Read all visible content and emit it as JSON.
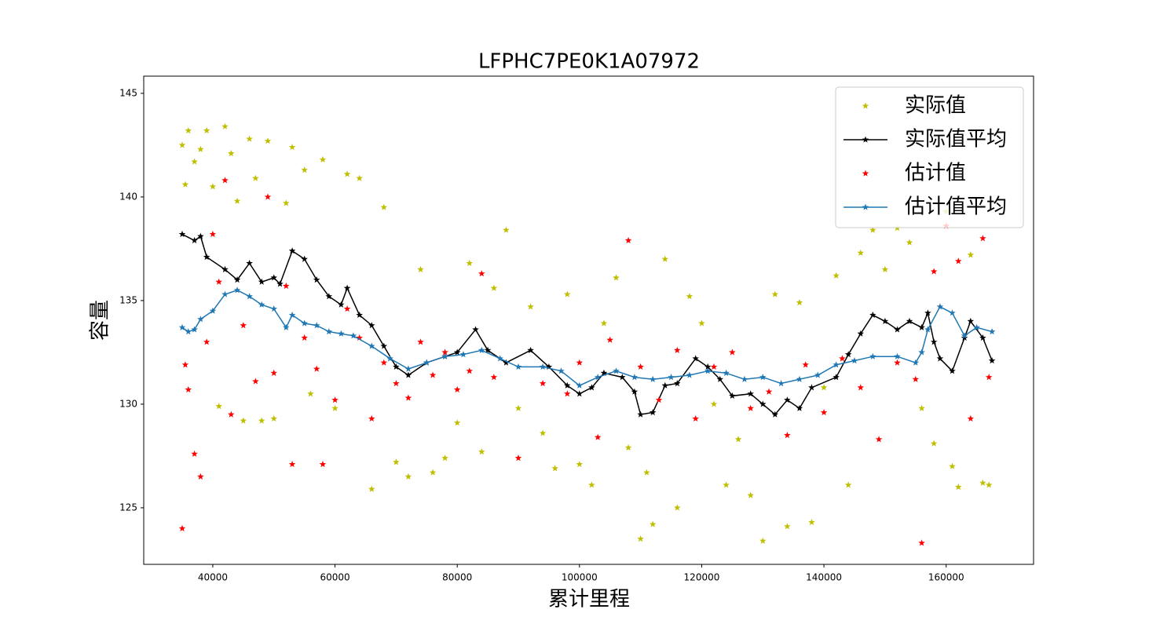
{
  "chart_data": {
    "type": "scatter",
    "title": "LFPHC7PE0K1A07972",
    "x_label": "累计里程",
    "y_label": "容量",
    "xlim": [
      28700,
      174300
    ],
    "ylim": [
      122.27,
      145.83
    ],
    "xticks": [
      40000,
      60000,
      80000,
      100000,
      120000,
      140000,
      160000
    ],
    "yticks": [
      125,
      130,
      135,
      140,
      145
    ],
    "legend": "upper right",
    "series": [
      {
        "name": "实际值",
        "color": "#bfbf00",
        "mode": "markers",
        "x": [
          35000,
          35500,
          36000,
          37000,
          38000,
          39000,
          40000,
          41000,
          42000,
          43000,
          44000,
          45000,
          46000,
          47000,
          48000,
          49000,
          50000,
          52000,
          53000,
          55000,
          56000,
          58000,
          60000,
          62000,
          64000,
          66000,
          68000,
          70000,
          72000,
          74000,
          76000,
          78000,
          80000,
          82000,
          84000,
          86000,
          88000,
          90000,
          92000,
          94000,
          96000,
          98000,
          100000,
          102000,
          104000,
          106000,
          108000,
          110000,
          111000,
          112000,
          114000,
          116000,
          118000,
          120000,
          122000,
          124000,
          126000,
          128000,
          130000,
          132000,
          134000,
          136000,
          138000,
          140000,
          142000,
          144000,
          146000,
          148000,
          150000,
          152000,
          154000,
          156000,
          158000,
          160000,
          161000,
          162000,
          164000,
          166000,
          167000
        ],
        "values": [
          142.5,
          140.6,
          143.2,
          141.7,
          142.3,
          143.2,
          140.5,
          129.9,
          143.4,
          142.1,
          139.8,
          129.2,
          142.8,
          140.9,
          129.2,
          142.7,
          129.3,
          139.7,
          142.4,
          141.3,
          130.5,
          141.8,
          129.8,
          141.1,
          140.9,
          125.9,
          139.5,
          127.2,
          126.5,
          136.5,
          126.7,
          127.4,
          129.1,
          136.8,
          127.7,
          135.6,
          138.4,
          129.8,
          134.7,
          128.6,
          126.9,
          135.3,
          127.1,
          126.1,
          133.9,
          136.1,
          127.9,
          123.5,
          126.7,
          124.2,
          137.0,
          125.0,
          135.2,
          133.9,
          130.0,
          126.1,
          128.3,
          125.6,
          123.4,
          135.3,
          124.1,
          134.9,
          124.3,
          130.8,
          136.2,
          126.1,
          137.3,
          138.4,
          136.5,
          138.5,
          137.8,
          129.8,
          128.1,
          139.3,
          127.0,
          126.0,
          137.2,
          126.2,
          126.1
        ]
      },
      {
        "name": "实际值平均",
        "color": "#000000",
        "mode": "lines+markers",
        "x": [
          35000,
          37000,
          38000,
          39000,
          42000,
          44000,
          46000,
          48000,
          50000,
          51000,
          53000,
          55000,
          57000,
          59000,
          61000,
          62000,
          64000,
          66000,
          68000,
          70000,
          72000,
          75000,
          78000,
          80000,
          83000,
          85000,
          88000,
          92000,
          95000,
          98000,
          100000,
          102000,
          104000,
          107000,
          109000,
          110000,
          112000,
          114000,
          116000,
          119000,
          121000,
          123000,
          125000,
          128000,
          130000,
          132000,
          134000,
          136000,
          138000,
          142000,
          144000,
          146000,
          148000,
          150000,
          152000,
          154000,
          156000,
          157000,
          158000,
          159000,
          161000,
          163000,
          164000,
          166000,
          167500
        ],
        "values": [
          138.2,
          137.9,
          138.1,
          137.1,
          136.5,
          136.0,
          136.8,
          135.9,
          136.1,
          135.8,
          137.4,
          137.0,
          136.0,
          135.2,
          134.8,
          135.6,
          134.3,
          133.8,
          132.8,
          131.8,
          131.4,
          132.0,
          132.3,
          132.5,
          133.6,
          132.6,
          132.0,
          132.6,
          131.8,
          130.9,
          130.5,
          130.8,
          131.5,
          131.3,
          130.6,
          129.5,
          129.6,
          130.9,
          131.0,
          132.2,
          131.8,
          131.2,
          130.4,
          130.5,
          130.0,
          129.5,
          130.2,
          129.8,
          130.8,
          131.3,
          132.4,
          133.4,
          134.3,
          134.0,
          133.6,
          134.0,
          133.7,
          134.4,
          133.0,
          132.2,
          131.6,
          133.2,
          134.0,
          133.2,
          132.1
        ]
      },
      {
        "name": "估计值",
        "color": "#ff0000",
        "mode": "markers",
        "x": [
          35000,
          35500,
          36000,
          37000,
          38000,
          39000,
          40000,
          41000,
          42000,
          43000,
          45000,
          47000,
          49000,
          50000,
          52000,
          53000,
          55000,
          57000,
          58000,
          60000,
          62000,
          64000,
          66000,
          68000,
          70000,
          72000,
          74000,
          76000,
          78000,
          80000,
          82000,
          84000,
          86000,
          90000,
          94000,
          98000,
          100000,
          103000,
          105000,
          108000,
          110000,
          113000,
          116000,
          119000,
          122000,
          125000,
          128000,
          131000,
          134000,
          137000,
          140000,
          143000,
          146000,
          149000,
          152000,
          155000,
          156000,
          158000,
          160000,
          162000,
          164000,
          166000,
          167000
        ],
        "values": [
          124.0,
          131.9,
          130.7,
          127.6,
          126.5,
          133.0,
          138.2,
          135.9,
          140.8,
          129.5,
          133.8,
          131.1,
          140.0,
          131.5,
          135.7,
          127.1,
          133.2,
          131.7,
          127.1,
          130.2,
          134.6,
          133.2,
          129.3,
          132.0,
          131.0,
          130.3,
          133.0,
          131.4,
          132.5,
          130.7,
          131.6,
          136.3,
          131.3,
          127.4,
          131.0,
          130.5,
          132.0,
          128.4,
          133.1,
          137.9,
          131.8,
          130.2,
          132.6,
          129.3,
          131.8,
          132.5,
          129.8,
          130.6,
          128.5,
          131.9,
          129.6,
          132.2,
          130.8,
          128.3,
          132.0,
          131.2,
          123.3,
          136.4,
          138.6,
          136.9,
          129.3,
          138.0,
          131.3
        ]
      },
      {
        "name": "估计值平均",
        "color": "#1f77b4",
        "mode": "lines+markers",
        "x": [
          35000,
          36000,
          37000,
          38000,
          40000,
          42000,
          44000,
          46000,
          48000,
          50000,
          52000,
          53000,
          55000,
          57000,
          59000,
          61000,
          63000,
          66000,
          69000,
          72000,
          75000,
          78000,
          81000,
          84000,
          87000,
          90000,
          94000,
          97000,
          100000,
          103000,
          106000,
          109000,
          112000,
          115000,
          118000,
          121000,
          124000,
          127000,
          130000,
          133000,
          136000,
          139000,
          142000,
          145000,
          148000,
          152000,
          155000,
          156000,
          157000,
          159000,
          161000,
          163000,
          165000,
          167500
        ],
        "values": [
          133.7,
          133.5,
          133.6,
          134.1,
          134.5,
          135.3,
          135.5,
          135.2,
          134.8,
          134.6,
          133.7,
          134.3,
          133.9,
          133.8,
          133.5,
          133.4,
          133.3,
          132.8,
          132.2,
          131.7,
          132.0,
          132.3,
          132.4,
          132.6,
          132.2,
          131.8,
          131.8,
          131.6,
          130.9,
          131.3,
          131.6,
          131.3,
          131.2,
          131.3,
          131.4,
          131.6,
          131.5,
          131.2,
          131.3,
          131.0,
          131.2,
          131.4,
          131.9,
          132.1,
          132.3,
          132.3,
          132.0,
          132.5,
          133.6,
          134.7,
          134.4,
          133.3,
          133.7,
          133.5
        ]
      }
    ]
  }
}
